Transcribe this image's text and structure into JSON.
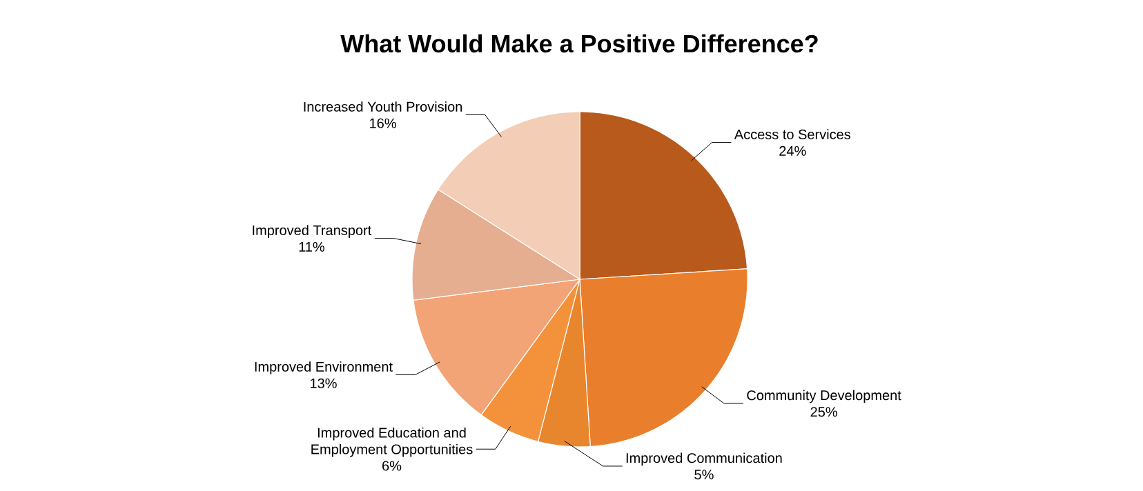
{
  "chart_data": {
    "type": "pie",
    "title": "What Would Make a Positive Difference?",
    "categories": [
      "Access to Services",
      "Community Development",
      "Improved Communication",
      "Improved Education and Employment Opportunities",
      "Improved Environment",
      "Improved Transport",
      "Increased Youth Provision"
    ],
    "values": [
      24,
      25,
      5,
      6,
      13,
      11,
      16
    ],
    "value_labels": [
      "24%",
      "25%",
      "5%",
      "6%",
      "13%",
      "11%",
      "16%"
    ],
    "colors": [
      "#b85a1c",
      "#e97f2c",
      "#e8862e",
      "#f3923a",
      "#f2a477",
      "#e6ae90",
      "#f3cdb6"
    ]
  }
}
